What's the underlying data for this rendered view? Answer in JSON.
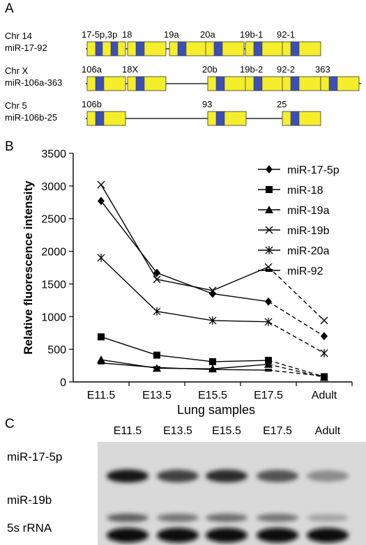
{
  "panels": {
    "a": "A",
    "b": "B",
    "c": "C"
  },
  "gene_map": {
    "clusters": [
      {
        "chr": "Chr 14",
        "name": "miR-17-92",
        "genes": [
          {
            "label": "17-5p,3p",
            "pair": true
          },
          {
            "label": "18"
          },
          {
            "label": "19a"
          },
          {
            "label": "20a"
          },
          {
            "label": "19b-1"
          },
          {
            "label": "92-1"
          }
        ]
      },
      {
        "chr": "Chr X",
        "name": "miR-106a-363",
        "genes": [
          {
            "label": "106a"
          },
          {
            "label": "18X"
          },
          {
            "label": "20b"
          },
          {
            "label": "19b-2"
          },
          {
            "label": "92-2"
          },
          {
            "label": "363"
          }
        ]
      },
      {
        "chr": "Chr 5",
        "name": "miR-106b-25",
        "genes": [
          {
            "label": "106b"
          },
          {
            "label": "93"
          },
          {
            "label": "25"
          }
        ]
      }
    ],
    "colors": {
      "exon": "#f5ee2a",
      "core": "#3c4fb8",
      "line": "#000000"
    }
  },
  "chart_data": {
    "type": "line",
    "categories": [
      "E11.5",
      "E13.5",
      "E15.5",
      "E17.5",
      "Adult"
    ],
    "xlabel": "Lung samples",
    "ylabel": "Relative fluorescence intensity",
    "ylim": [
      0,
      3500
    ],
    "yticks": [
      0,
      500,
      1000,
      1500,
      2000,
      2500,
      3000,
      3500
    ],
    "dashed_segment": "E17.5 to Adult",
    "legend_position": "top-right",
    "grid": false,
    "series": [
      {
        "name": "miR-17-5p",
        "marker": "diamond",
        "values": [
          2770,
          1670,
          1350,
          1230,
          700
        ]
      },
      {
        "name": "miR-18",
        "marker": "square",
        "values": [
          690,
          410,
          310,
          330,
          80
        ]
      },
      {
        "name": "miR-19a",
        "marker": "triangle",
        "values": [
          340,
          210,
          200,
          270,
          70
        ]
      },
      {
        "name": "miR-19b",
        "marker": "x",
        "values": [
          3020,
          1570,
          1400,
          1760,
          940
        ]
      },
      {
        "name": "miR-20a",
        "marker": "star",
        "values": [
          1900,
          1080,
          940,
          920,
          440
        ]
      },
      {
        "name": "miR-92",
        "marker": "dash",
        "values": [
          290,
          220,
          190,
          180,
          90
        ]
      }
    ]
  },
  "blot": {
    "lanes": [
      "E11.5",
      "E13.5",
      "E15.5",
      "E17.5",
      "Adult"
    ],
    "rows": [
      {
        "label": "miR-17-5p",
        "intensity": [
          0.95,
          0.72,
          0.82,
          0.62,
          0.32
        ]
      },
      {
        "label": "miR-19b",
        "intensity": [
          0.55,
          0.45,
          0.48,
          0.45,
          0.2
        ]
      },
      {
        "label": "5s rRNA",
        "intensity": [
          1.0,
          1.0,
          1.0,
          1.0,
          1.0
        ]
      }
    ]
  }
}
